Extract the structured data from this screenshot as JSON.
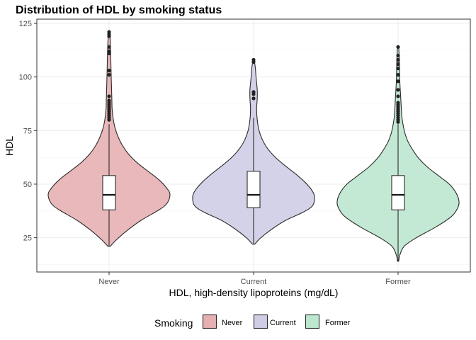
{
  "colors": {
    "never": "#e6b0b2",
    "current": "#cfcde6",
    "former": "#bce7cf"
  },
  "chart_data": {
    "type": "violin",
    "title": "Distribution of HDL by smoking status",
    "xlabel": "HDL, high-density lipoproteins (mg/dL)",
    "ylabel": "HDL",
    "ylim": [
      9,
      127
    ],
    "yticks": [
      25,
      50,
      75,
      100,
      125
    ],
    "grid": true,
    "legend": {
      "title": "Smoking",
      "position": "bottom",
      "entries": [
        "Never",
        "Current",
        "Former"
      ]
    },
    "categories": [
      "Never",
      "Current",
      "Former"
    ],
    "series": [
      {
        "name": "Never",
        "color_key": "never",
        "violin": {
          "y": [
            21,
            24,
            28,
            33,
            38,
            41,
            45,
            48,
            52,
            56,
            60,
            64,
            68,
            72,
            76,
            80,
            85,
            90,
            95,
            100,
            106,
            112,
            116,
            121
          ],
          "w": [
            0.02,
            0.12,
            0.28,
            0.52,
            0.82,
            0.95,
            1.0,
            0.95,
            0.82,
            0.64,
            0.46,
            0.32,
            0.22,
            0.15,
            0.1,
            0.07,
            0.05,
            0.045,
            0.04,
            0.035,
            0.03,
            0.025,
            0.02,
            0.01
          ]
        },
        "box": {
          "q1": 38,
          "median": 45,
          "q3": 54,
          "whisker_low": 21,
          "whisker_high": 78
        },
        "outliers": [
          80,
          81,
          82,
          83,
          84,
          85,
          86,
          87,
          88,
          89,
          91,
          101,
          103,
          111,
          112,
          114,
          119,
          120,
          121
        ]
      },
      {
        "name": "Current",
        "color_key": "current",
        "violin": {
          "y": [
            22,
            25,
            29,
            33,
            37,
            40,
            44,
            47,
            51,
            55,
            59,
            63,
            67,
            71,
            75,
            80,
            85,
            90,
            94,
            100,
            104,
            108
          ],
          "w": [
            0.02,
            0.12,
            0.3,
            0.52,
            0.82,
            0.97,
            1.0,
            0.96,
            0.84,
            0.68,
            0.5,
            0.34,
            0.22,
            0.14,
            0.09,
            0.06,
            0.05,
            0.06,
            0.06,
            0.04,
            0.03,
            0.01
          ]
        },
        "box": {
          "q1": 39,
          "median": 45,
          "q3": 56,
          "whisker_low": 22,
          "whisker_high": 81
        },
        "outliers": [
          90,
          92,
          93,
          107,
          108
        ]
      },
      {
        "name": "Former",
        "color_key": "former",
        "violin": {
          "y": [
            14,
            17,
            21,
            25,
            30,
            35,
            39,
            42,
            46,
            50,
            54,
            58,
            62,
            66,
            70,
            74,
            78,
            82,
            87,
            92,
            97,
            102,
            108,
            114
          ],
          "w": [
            0.01,
            0.03,
            0.1,
            0.3,
            0.62,
            0.88,
            0.98,
            1.0,
            0.95,
            0.84,
            0.66,
            0.48,
            0.34,
            0.24,
            0.16,
            0.11,
            0.08,
            0.06,
            0.05,
            0.04,
            0.03,
            0.025,
            0.02,
            0.01
          ]
        },
        "box": {
          "q1": 38,
          "median": 45,
          "q3": 54,
          "whisker_low": 14,
          "whisker_high": 78
        },
        "outliers": [
          79,
          80,
          81,
          82,
          83,
          84,
          85,
          86,
          87,
          88,
          91,
          94,
          98,
          101,
          104,
          106,
          108,
          110,
          114
        ]
      }
    ]
  }
}
